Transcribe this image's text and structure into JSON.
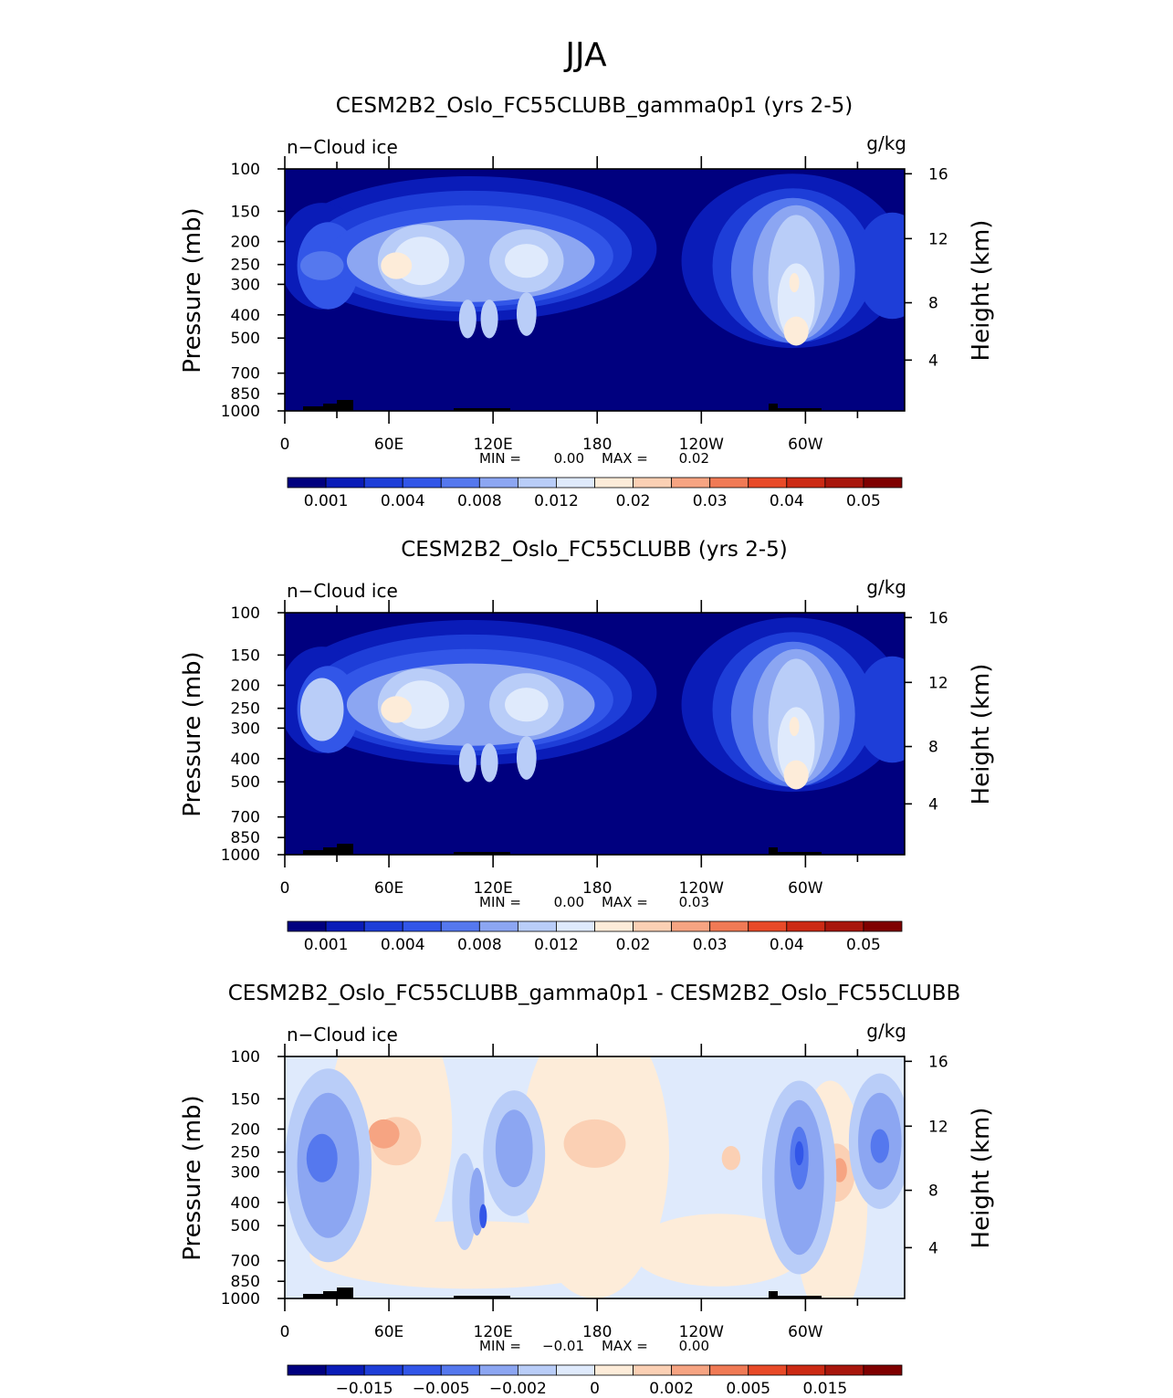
{
  "figure": {
    "season": "JJA"
  },
  "chart_data": [
    {
      "type": "heatmap",
      "title": "CESM2B2_Oslo_FC55CLUBB_gamma0p1 (yrs 2-5)",
      "left_label": "n−Cloud ice",
      "units": "g/kg",
      "ylabel": "Pressure (mb)",
      "y2label": "Height (km)",
      "y_ticks": [
        "100",
        "150",
        "200",
        "250",
        "300",
        "400",
        "500",
        "700",
        "850",
        "1000"
      ],
      "y2_ticks": [
        "16",
        "12",
        "8",
        "4"
      ],
      "x_tick_labels": [
        "0",
        "60E",
        "120E",
        "180",
        "120W",
        "60W"
      ],
      "min_label": "MIN =",
      "min_value": "0.00",
      "max_label": "MAX =",
      "max_value": "0.02",
      "colorbar": {
        "labels": [
          "0.001",
          "0.004",
          "0.008",
          "0.012",
          "0.02",
          "0.03",
          "0.04",
          "0.05"
        ],
        "colors": [
          "#00007f",
          "#0a1cb8",
          "#1e3ed8",
          "#3256e8",
          "#5578ee",
          "#8ca6f2",
          "#b9cdf8",
          "#dfeafc",
          "#fdecd9",
          "#fbd0b4",
          "#f6a482",
          "#f07a55",
          "#e84a28",
          "#cc2a14",
          "#a8160c",
          "#7f0000"
        ]
      }
    },
    {
      "type": "heatmap",
      "title": "CESM2B2_Oslo_FC55CLUBB (yrs 2-5)",
      "left_label": "n−Cloud ice",
      "units": "g/kg",
      "ylabel": "Pressure (mb)",
      "y2label": "Height (km)",
      "y_ticks": [
        "100",
        "150",
        "200",
        "250",
        "300",
        "400",
        "500",
        "700",
        "850",
        "1000"
      ],
      "y2_ticks": [
        "16",
        "12",
        "8",
        "4"
      ],
      "x_tick_labels": [
        "0",
        "60E",
        "120E",
        "180",
        "120W",
        "60W"
      ],
      "min_label": "MIN =",
      "min_value": "0.00",
      "max_label": "MAX =",
      "max_value": "0.03",
      "colorbar": {
        "labels": [
          "0.001",
          "0.004",
          "0.008",
          "0.012",
          "0.02",
          "0.03",
          "0.04",
          "0.05"
        ],
        "colors": [
          "#00007f",
          "#0a1cb8",
          "#1e3ed8",
          "#3256e8",
          "#5578ee",
          "#8ca6f2",
          "#b9cdf8",
          "#dfeafc",
          "#fdecd9",
          "#fbd0b4",
          "#f6a482",
          "#f07a55",
          "#e84a28",
          "#cc2a14",
          "#a8160c",
          "#7f0000"
        ]
      }
    },
    {
      "type": "heatmap",
      "title": "CESM2B2_Oslo_FC55CLUBB_gamma0p1 - CESM2B2_Oslo_FC55CLUBB",
      "left_label": "n−Cloud ice",
      "units": "g/kg",
      "ylabel": "Pressure (mb)",
      "y2label": "Height (km)",
      "y_ticks": [
        "100",
        "150",
        "200",
        "250",
        "300",
        "400",
        "500",
        "700",
        "850",
        "1000"
      ],
      "y2_ticks": [
        "16",
        "12",
        "8",
        "4"
      ],
      "x_tick_labels": [
        "0",
        "60E",
        "120E",
        "180",
        "120W",
        "60W"
      ],
      "min_label": "MIN =",
      "min_value": "−0.01",
      "max_label": "MAX =",
      "max_value": "0.00",
      "colorbar": {
        "labels": [
          "−0.015",
          "−0.005",
          "−0.002",
          "0",
          "0.002",
          "0.005",
          "0.015"
        ],
        "colors": [
          "#00007f",
          "#0a1cb8",
          "#1e3ed8",
          "#3256e8",
          "#5578ee",
          "#8ca6f2",
          "#b9cdf8",
          "#dfeafc",
          "#fdecd9",
          "#fbd0b4",
          "#f6a482",
          "#f07a55",
          "#e84a28",
          "#cc2a14",
          "#a8160c",
          "#7f0000"
        ]
      }
    }
  ]
}
